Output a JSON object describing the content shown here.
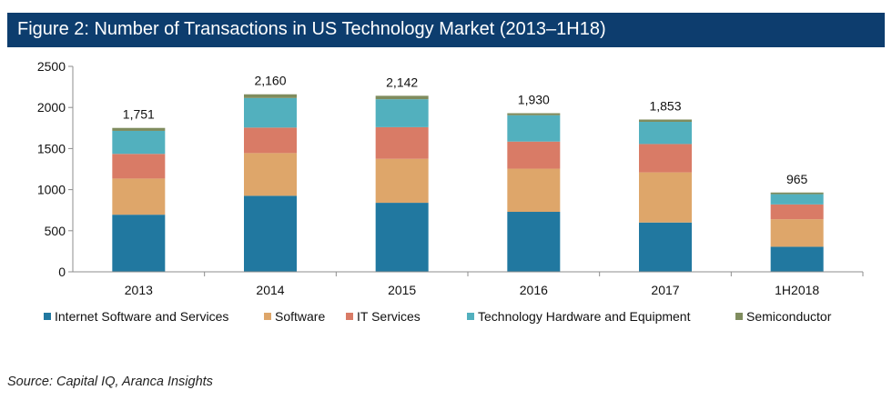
{
  "figure": {
    "title": "Figure 2: Number of Transactions in US Technology Market (2013–1H18)",
    "source": "Source:  Capital  IQ,  Aranca  Insights"
  },
  "chart_data": {
    "type": "bar",
    "stacked": true,
    "title": "Figure 2: Number of Transactions in US Technology Market (2013–1H18)",
    "xlabel": "",
    "ylabel": "",
    "ylim": [
      0,
      2500
    ],
    "yticks": [
      0,
      500,
      1000,
      1500,
      2000,
      2500
    ],
    "grid": false,
    "legend": "bottom",
    "categories": [
      "2013",
      "2014",
      "2015",
      "2016",
      "2017",
      "1H2018"
    ],
    "totals": [
      1751,
      2160,
      2142,
      1930,
      1853,
      965
    ],
    "total_labels": [
      "1,751",
      "2,160",
      "2,142",
      "1,930",
      "1,853",
      "965"
    ],
    "series": [
      {
        "name": "Internet Software and Services",
        "color": "#2178a0",
        "values": [
          695,
          925,
          840,
          730,
          600,
          305
        ]
      },
      {
        "name": "Software",
        "color": "#dea66a",
        "values": [
          440,
          520,
          535,
          525,
          610,
          335
        ]
      },
      {
        "name": "IT Services",
        "color": "#d97b66",
        "values": [
          300,
          310,
          385,
          330,
          345,
          180
        ]
      },
      {
        "name": "Technology Hardware and Equipment",
        "color": "#52b0be",
        "values": [
          280,
          360,
          340,
          320,
          270,
          125
        ]
      },
      {
        "name": "Semiconductor",
        "color": "#7f8c5e",
        "values": [
          36,
          45,
          42,
          25,
          28,
          20
        ]
      }
    ]
  }
}
